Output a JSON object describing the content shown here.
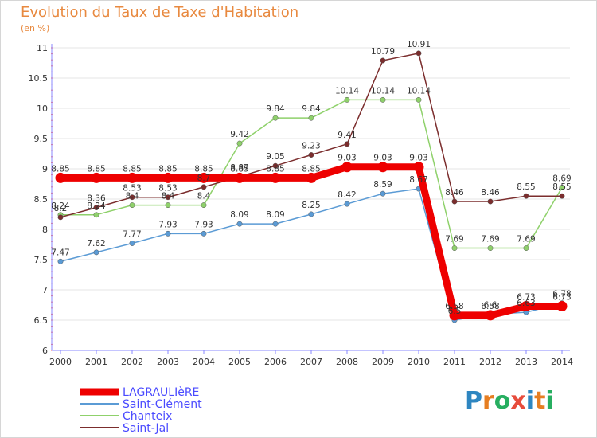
{
  "title": "Evolution du Taux de Taxe d'Habitation",
  "subtitle": "(en %)",
  "logo": {
    "text": "ProXiti",
    "letters": [
      "P",
      "r",
      "o",
      "x",
      "i",
      "t",
      "i"
    ],
    "colors": [
      "#2e86c1",
      "#e67e22",
      "#27ae60",
      "#e74c3c",
      "#2e86c1",
      "#e67e22",
      "#27ae60"
    ]
  },
  "chart_data": {
    "type": "line",
    "title": "Evolution du Taux de Taxe d'Habitation",
    "subtitle": "(en %)",
    "xlabel": "",
    "ylabel": "",
    "x": [
      "2000",
      "2001",
      "2002",
      "2003",
      "2004",
      "2005",
      "2006",
      "2007",
      "2008",
      "2009",
      "2010",
      "2011",
      "2012",
      "2013",
      "2014"
    ],
    "ylim": [
      6,
      11
    ],
    "yticks": [
      "6",
      "6.5",
      "7",
      "7.5",
      "8",
      "8.5",
      "9",
      "9.5",
      "10",
      "10.5",
      "11"
    ],
    "grid": "horizontal",
    "legend_position": "bottom-left",
    "series": [
      {
        "name": "LAGRAULIèRE",
        "color": "#ee0000",
        "width": 9,
        "values": [
          8.85,
          8.85,
          8.85,
          8.85,
          8.85,
          8.85,
          8.85,
          8.85,
          9.03,
          9.03,
          9.03,
          6.58,
          6.58,
          6.73,
          6.73
        ],
        "labels": [
          "8.85",
          "8.85",
          "8.85",
          "8.85",
          "8.85",
          "8.85",
          "8.85",
          "8.85",
          "9.03",
          "9.03",
          "9.03",
          "6.58",
          "6.58",
          "6.73",
          "6.73"
        ]
      },
      {
        "name": "Saint-Clément",
        "color": "#5b9bd5",
        "width": 1.5,
        "values": [
          7.47,
          7.62,
          7.77,
          7.93,
          7.93,
          8.09,
          8.09,
          8.25,
          8.42,
          8.59,
          8.67,
          6.5,
          6.6,
          6.63,
          6.78
        ],
        "labels": [
          "7.47",
          "7.62",
          "7.77",
          "7.93",
          "7.93",
          "8.09",
          "8.09",
          "8.25",
          "8.42",
          "8.59",
          "8.67",
          "6.5",
          "6.6",
          "6.63",
          "6.78"
        ]
      },
      {
        "name": "Chanteix",
        "color": "#8fd16b",
        "width": 1.5,
        "values": [
          8.24,
          8.24,
          8.4,
          8.4,
          8.4,
          9.42,
          9.84,
          9.84,
          10.14,
          10.14,
          10.14,
          7.69,
          7.69,
          7.69,
          8.69
        ],
        "labels": [
          "8.24",
          "8.24",
          "8.4",
          "8.4",
          "8.4",
          "9.42",
          "9.84",
          "9.84",
          "10.14",
          "10.14",
          "10.14",
          "7.69",
          "7.69",
          "7.69",
          "8.69"
        ]
      },
      {
        "name": "Saint-Jal",
        "color": "#7b2d2d",
        "width": 1.5,
        "values": [
          8.2,
          8.36,
          8.53,
          8.53,
          8.7,
          8.87,
          9.05,
          9.23,
          9.41,
          10.79,
          10.91,
          8.46,
          8.46,
          8.55,
          8.55
        ],
        "labels": [
          "8.2",
          "8.36",
          "8.53",
          "8.53",
          "8.7",
          "8.87",
          "9.05",
          "9.23",
          "9.41",
          "10.79",
          "10.91",
          "8.46",
          "8.46",
          "8.55",
          "8.55"
        ]
      }
    ]
  }
}
